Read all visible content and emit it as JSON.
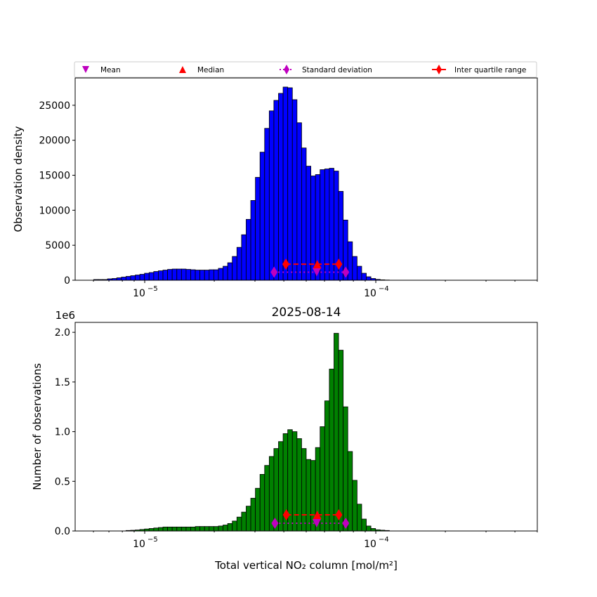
{
  "chart_data": [
    {
      "type": "bar",
      "panel": "top",
      "title": "",
      "xlabel": "",
      "ylabel": "Observation density",
      "xscale": "log",
      "bin_edges_log10_range": [
        -5.301,
        -3.301
      ],
      "n_bins": 100,
      "xlim": [
        5e-06,
        0.0005
      ],
      "ylim": [
        0,
        28900
      ],
      "yticks": [
        0,
        5000,
        10000,
        15000,
        20000,
        25000
      ],
      "ytick_labels": [
        "0",
        "5000",
        "10000",
        "15000",
        "20000",
        "25000"
      ],
      "xtick_labels": [
        {
          "value": 1e-05,
          "base": "10",
          "exp": "−5"
        },
        {
          "value": 0.0001,
          "base": "10",
          "exp": "−4"
        }
      ],
      "color": "#0000ff",
      "values": [
        0,
        0,
        0,
        0,
        100,
        100,
        100,
        200,
        250,
        350,
        450,
        550,
        650,
        750,
        850,
        1000,
        1100,
        1250,
        1350,
        1450,
        1550,
        1600,
        1600,
        1600,
        1550,
        1500,
        1450,
        1450,
        1450,
        1500,
        1500,
        1700,
        2000,
        2500,
        3400,
        4700,
        6500,
        8700,
        11400,
        14700,
        18300,
        21700,
        24200,
        25700,
        26700,
        27600,
        27500,
        25800,
        22500,
        18900,
        16300,
        14900,
        15100,
        15800,
        15900,
        16000,
        15600,
        12700,
        8600,
        5500,
        3400,
        2000,
        1000,
        500,
        250,
        120,
        60,
        30,
        0,
        0,
        0,
        0,
        0,
        0,
        0,
        0,
        0,
        0,
        0,
        0,
        0,
        0,
        0,
        0,
        0,
        0,
        0,
        0,
        0,
        0,
        0,
        0,
        0,
        0,
        0,
        0,
        0,
        0,
        0,
        0
      ],
      "stats": {
        "mean": 5.55e-05,
        "median": 5.58e-05,
        "std_range": [
          3.63e-05,
          7.41e-05
        ],
        "iqr": [
          4.08e-05,
          6.92e-05
        ],
        "iqr_y": 2300,
        "std_y": 1150
      }
    },
    {
      "type": "bar",
      "panel": "bottom",
      "title": "2025-08-14",
      "xlabel": "Total vertical NO₂ column [mol/m²]",
      "ylabel": "Number of observations",
      "offset_text": "1e6",
      "xscale": "log",
      "n_bins": 100,
      "xlim": [
        5e-06,
        0.0005
      ],
      "ylim": [
        0,
        2.1
      ],
      "yticks": [
        0,
        0.5,
        1.0,
        1.5,
        2.0
      ],
      "ytick_labels": [
        "0.0",
        "0.5",
        "1.0",
        "1.5",
        "2.0"
      ],
      "xtick_labels": [
        {
          "value": 1e-05,
          "base": "10",
          "exp": "−5"
        },
        {
          "value": 0.0001,
          "base": "10",
          "exp": "−4"
        }
      ],
      "color": "#008000",
      "values": [
        0,
        0,
        0,
        0,
        0,
        0,
        0,
        0,
        0,
        0,
        0,
        0.005,
        0.007,
        0.01,
        0.015,
        0.02,
        0.025,
        0.03,
        0.035,
        0.04,
        0.04,
        0.04,
        0.04,
        0.04,
        0.04,
        0.04,
        0.045,
        0.045,
        0.045,
        0.045,
        0.045,
        0.05,
        0.06,
        0.075,
        0.1,
        0.14,
        0.19,
        0.25,
        0.33,
        0.43,
        0.57,
        0.66,
        0.75,
        0.83,
        0.9,
        0.98,
        1.02,
        1.0,
        0.93,
        0.83,
        0.72,
        0.71,
        0.84,
        1.05,
        1.31,
        1.63,
        1.99,
        1.82,
        1.25,
        0.8,
        0.51,
        0.27,
        0.12,
        0.05,
        0.025,
        0.012,
        0.008,
        0.005,
        0,
        0,
        0,
        0,
        0,
        0,
        0,
        0,
        0,
        0,
        0,
        0,
        0,
        0,
        0,
        0,
        0,
        0,
        0,
        0,
        0,
        0,
        0,
        0,
        0,
        0,
        0,
        0,
        0,
        0,
        0,
        0
      ],
      "stats": {
        "mean": 5.55e-05,
        "median": 5.58e-05,
        "std_range": [
          3.66e-05,
          7.41e-05
        ],
        "iqr": [
          4.1e-05,
          6.92e-05
        ],
        "iqr_y": 0.163,
        "std_y": 0.078
      }
    }
  ],
  "legend": {
    "placement": "top",
    "items": [
      {
        "label": "Mean",
        "marker": "triangle-down",
        "color": "#bf00bf"
      },
      {
        "label": "Median",
        "marker": "triangle-up",
        "color": "#ff0000"
      },
      {
        "label": "Standard deviation",
        "marker": "diamond-dotted",
        "color": "#bf00bf"
      },
      {
        "label": "Inter quartile range",
        "marker": "diamond-dashed",
        "color": "#ff0000"
      }
    ]
  }
}
